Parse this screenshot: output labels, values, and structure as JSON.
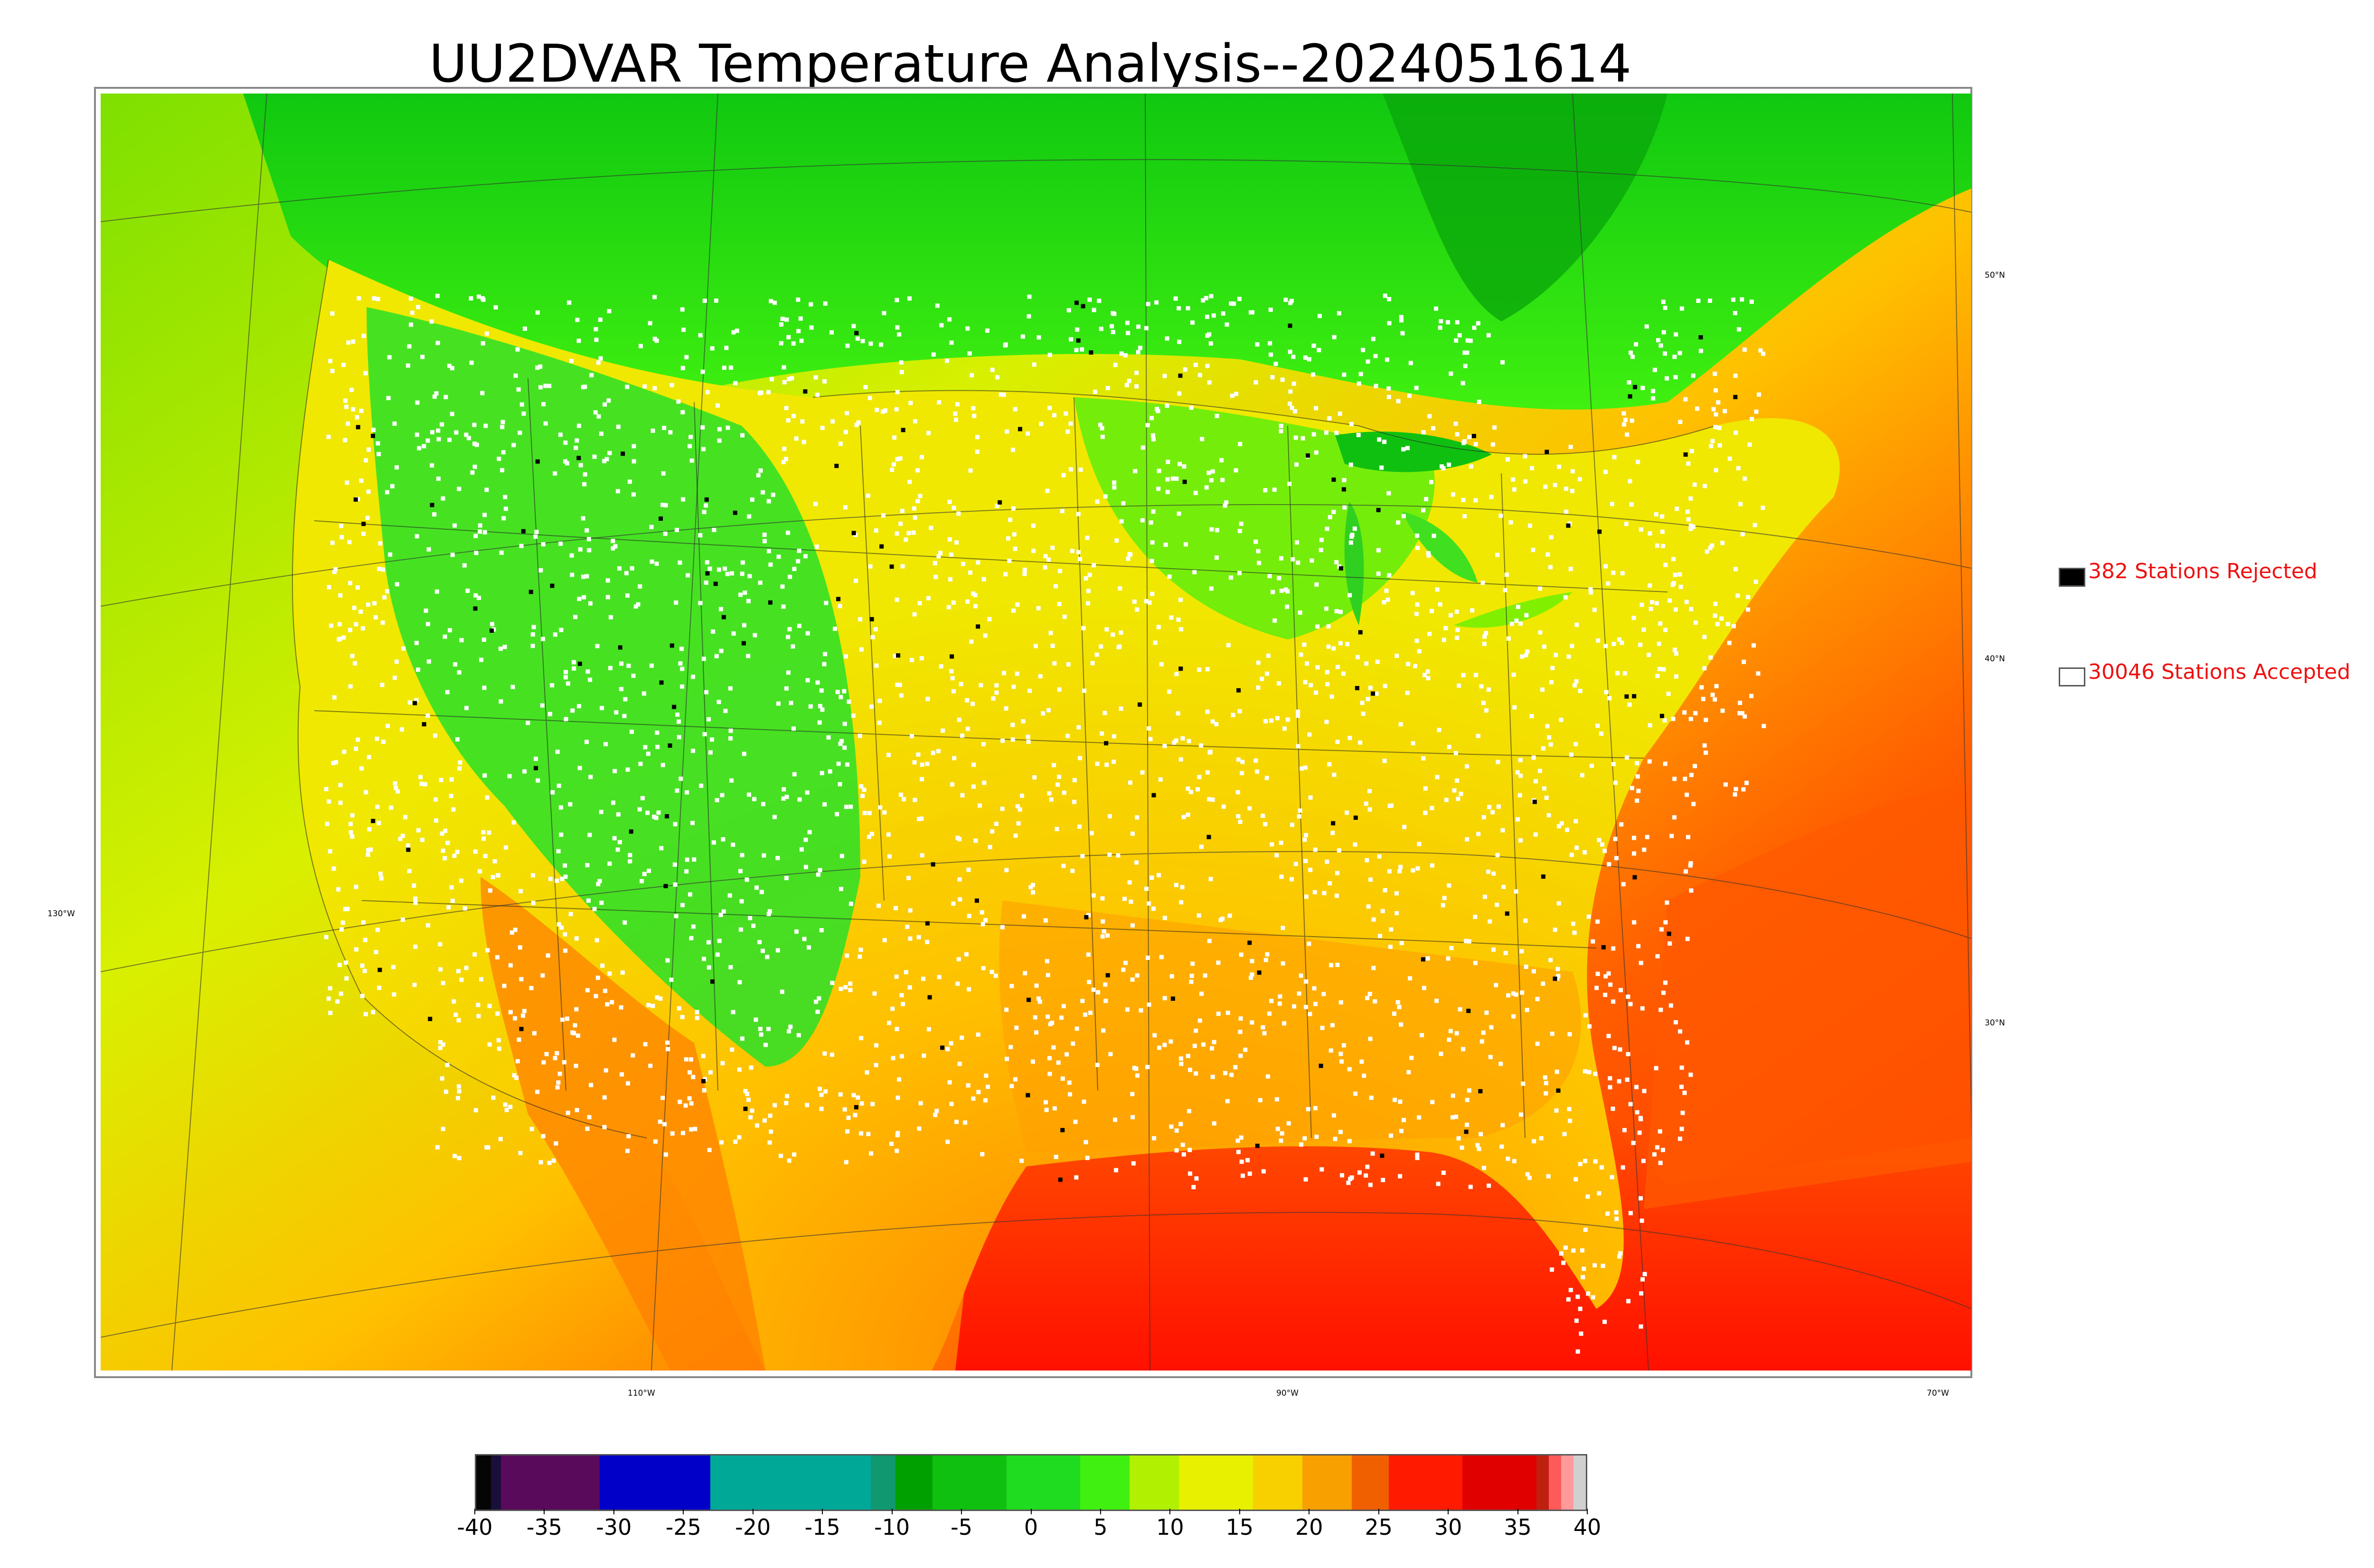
{
  "title": "UU2DVAR Temperature Analysis--2024051614",
  "axis_labels": {
    "longitudes": [
      "130°W",
      "110°W",
      "90°W",
      "70°W"
    ],
    "latitudes": [
      "50°N",
      "40°N",
      "30°N"
    ]
  },
  "legend": {
    "rejected": {
      "label": "382 Stations Rejected",
      "color": "#000000"
    },
    "accepted": {
      "label": "30046 Stations Accepted",
      "color": "#ffffff"
    }
  },
  "colorbar": {
    "ticks": [
      "-40",
      "-35",
      "-30",
      "-25",
      "-20",
      "-15",
      "-10",
      "-5",
      "0",
      "5",
      "10",
      "15",
      "20",
      "25",
      "30",
      "35",
      "40"
    ],
    "segments": [
      {
        "color": "#050505",
        "span": 0.6
      },
      {
        "color": "#1a0f3a",
        "span": 0.4
      },
      {
        "color": "#5a0a5a",
        "span": 4
      },
      {
        "color": "#0000c8",
        "span": 4.5
      },
      {
        "color": "#00a898",
        "span": 6.5
      },
      {
        "color": "#109870",
        "span": 1
      },
      {
        "color": "#00a000",
        "span": 1.5
      },
      {
        "color": "#10c010",
        "span": 3
      },
      {
        "color": "#20dc20",
        "span": 3
      },
      {
        "color": "#40f010",
        "span": 2
      },
      {
        "color": "#b0f000",
        "span": 2
      },
      {
        "color": "#e8f000",
        "span": 3
      },
      {
        "color": "#f8d000",
        "span": 2
      },
      {
        "color": "#f8a000",
        "span": 2
      },
      {
        "color": "#f06000",
        "span": 1.5
      },
      {
        "color": "#ff1a00",
        "span": 3
      },
      {
        "color": "#e00000",
        "span": 3
      },
      {
        "color": "#c02010",
        "span": 0.5
      },
      {
        "color": "#ff5a5a",
        "span": 0.5
      },
      {
        "color": "#ff9a9a",
        "span": 0.5
      },
      {
        "color": "#d0d0d0",
        "span": 0.5
      }
    ]
  },
  "colors": {
    "legend_text": "#ee1111",
    "ocean_cool": "#d8f000",
    "ocean_warm": "#ff2a00",
    "land_cool": "#18e818",
    "land_mid": "#f0e000",
    "land_warm": "#ff9000"
  }
}
